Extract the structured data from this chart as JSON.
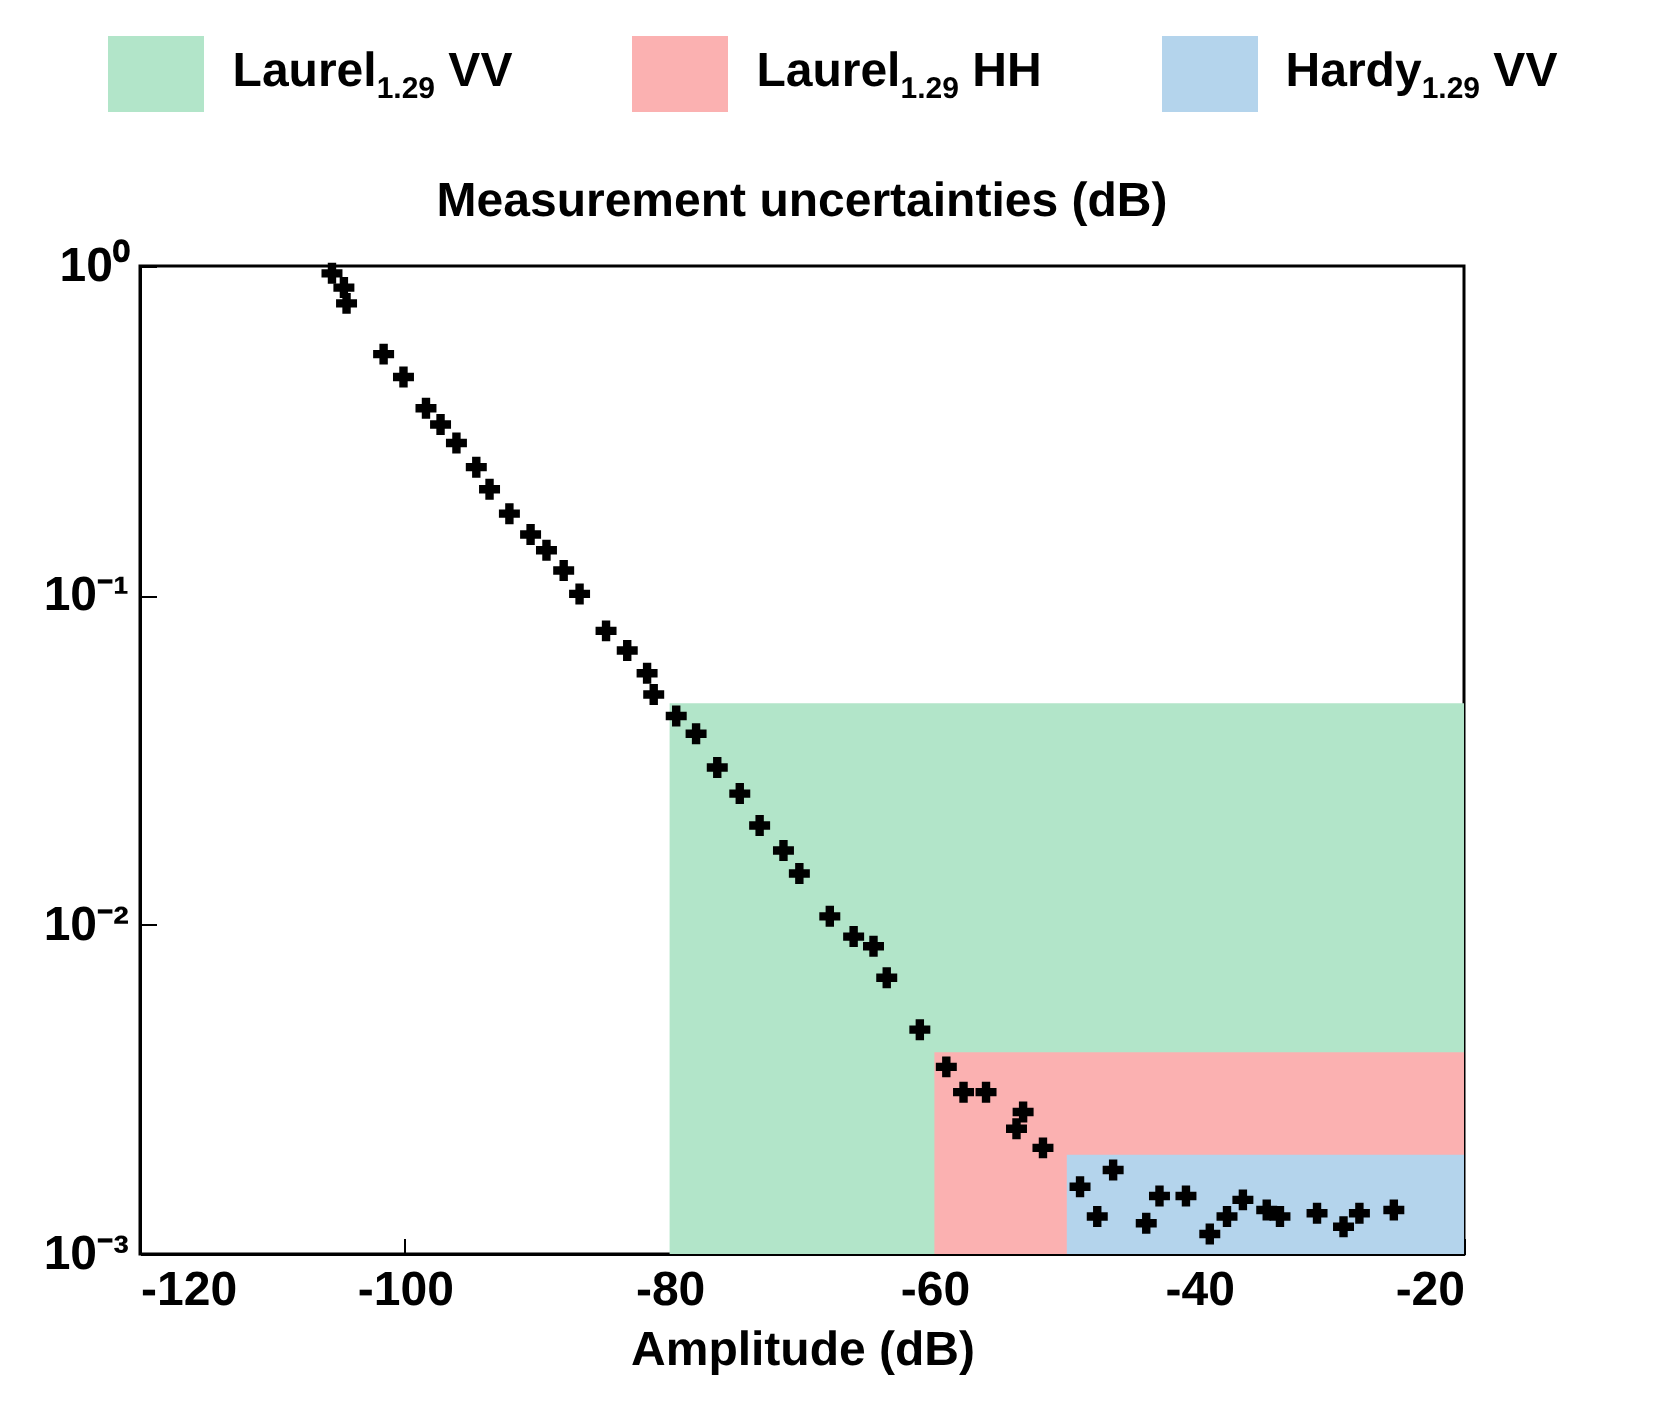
{
  "chart_data": {
    "type": "scatter",
    "title": "Measurement uncertainties (dB)",
    "xlabel": "Amplitude (dB)",
    "xlim": [
      -120,
      -20
    ],
    "xticks": [
      -120,
      -100,
      -80,
      -60,
      -40,
      -20
    ],
    "ylim": [
      0.001,
      1
    ],
    "yticks": [
      {
        "value": 1,
        "label": "10⁰"
      },
      {
        "value": 0.1,
        "label": "10⁻¹"
      },
      {
        "value": 0.01,
        "label": "10⁻²"
      },
      {
        "value": 0.001,
        "label": "10⁻³"
      }
    ],
    "log": true,
    "grid": false,
    "legend": "top",
    "series": [
      {
        "type": "area",
        "name": "Laurel$_{1.29}$ VV",
        "color": "#b2e5c9",
        "x": [
          -80,
          -20
        ],
        "values": [
          0.047,
          0.047
        ]
      },
      {
        "type": "area",
        "name": "Laurel$_{1.29}$ HH",
        "color": "#fbb1b1",
        "x": [
          -60,
          -20
        ],
        "values": [
          0.0041,
          0.0041
        ]
      },
      {
        "type": "area",
        "name": "Hardy$_{1.29}$ VV",
        "color": "#b4d4ec",
        "x": [
          -50,
          -20
        ],
        "values": [
          0.002,
          0.002
        ]
      },
      {
        "marker": "cross",
        "color": "#000000",
        "x": [
          -105.5,
          -104.6,
          -104.4,
          -101.6,
          -100.1,
          -98.4,
          -97.3,
          -96.1,
          -94.6,
          -93.6,
          -92.1,
          -90.5,
          -89.3,
          -88.0,
          -86.8,
          -84.8,
          -83.2,
          -81.7,
          -81.2,
          -79.5,
          -78.0,
          -76.4,
          -74.7,
          -73.2,
          -71.4,
          -70.2,
          -67.9,
          -66.1,
          -64.6,
          -63.6,
          -61.1,
          -59.1,
          -57.8,
          -56.1,
          -53.3,
          -53.8,
          -51.8,
          -49.0,
          -46.5,
          -47.7,
          -44.0,
          -43.0,
          -41.0,
          -39.2,
          -37.9,
          -36.7,
          -34.9,
          -33.9,
          -31.1,
          -29.1,
          -27.9,
          -25.3
        ],
        "values": [
          0.95,
          0.86,
          0.77,
          0.54,
          0.46,
          0.37,
          0.33,
          0.29,
          0.245,
          0.21,
          0.177,
          0.153,
          0.137,
          0.119,
          0.101,
          0.078,
          0.068,
          0.058,
          0.05,
          0.043,
          0.038,
          0.03,
          0.025,
          0.02,
          0.0168,
          0.0143,
          0.0106,
          0.0092,
          0.0086,
          0.0069,
          0.0048,
          0.0037,
          0.0031,
          0.0031,
          0.0027,
          0.0024,
          0.0021,
          0.0016,
          0.0018,
          0.0013,
          0.00124,
          0.0015,
          0.0015,
          0.00115,
          0.0013,
          0.00146,
          0.00136,
          0.0013,
          0.00133,
          0.00121,
          0.00133,
          0.00136
        ]
      }
    ]
  }
}
